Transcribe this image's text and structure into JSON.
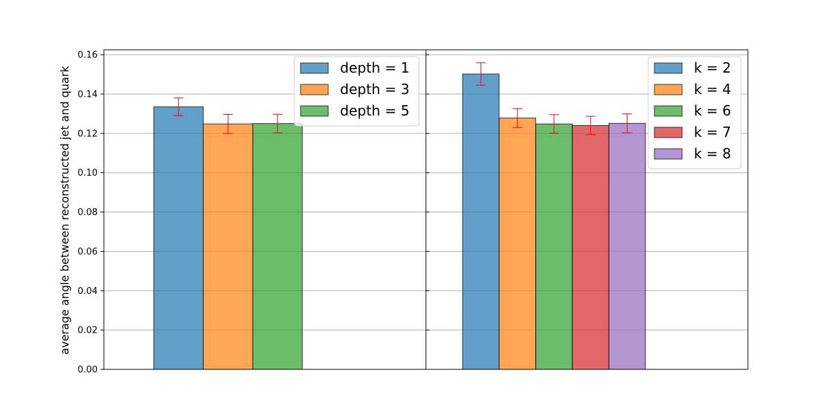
{
  "chart_data": {
    "ylabel": "average angle between reconstructed jet and quark",
    "ylim": [
      0,
      0.1625
    ],
    "yticks": [
      "0.00",
      "0.02",
      "0.04",
      "0.06",
      "0.08",
      "0.10",
      "0.12",
      "0.14",
      "0.16"
    ],
    "grid": "y",
    "shared_y": true,
    "panels": [
      {
        "type": "bar",
        "legend_position": "top-right",
        "series": [
          {
            "name": "depth = 1",
            "value": 0.1335,
            "error": 0.0045,
            "color": "#1f77b4"
          },
          {
            "name": "depth = 3",
            "value": 0.1248,
            "error": 0.0048,
            "color": "#ff7f0e"
          },
          {
            "name": "depth = 5",
            "value": 0.125,
            "error": 0.0047,
            "color": "#2ca02c"
          }
        ]
      },
      {
        "type": "bar",
        "legend_position": "top-right",
        "series": [
          {
            "name": "k = 2",
            "value": 0.1502,
            "error": 0.0057,
            "color": "#1f77b4"
          },
          {
            "name": "k = 4",
            "value": 0.1278,
            "error": 0.0048,
            "color": "#ff7f0e"
          },
          {
            "name": "k = 6",
            "value": 0.1248,
            "error": 0.0047,
            "color": "#2ca02c"
          },
          {
            "name": "k = 7",
            "value": 0.124,
            "error": 0.0047,
            "color": "#d62728"
          },
          {
            "name": "k = 8",
            "value": 0.1251,
            "error": 0.0048,
            "color": "#9467bd"
          }
        ]
      }
    ],
    "error_bar_color": "#ff0000"
  }
}
